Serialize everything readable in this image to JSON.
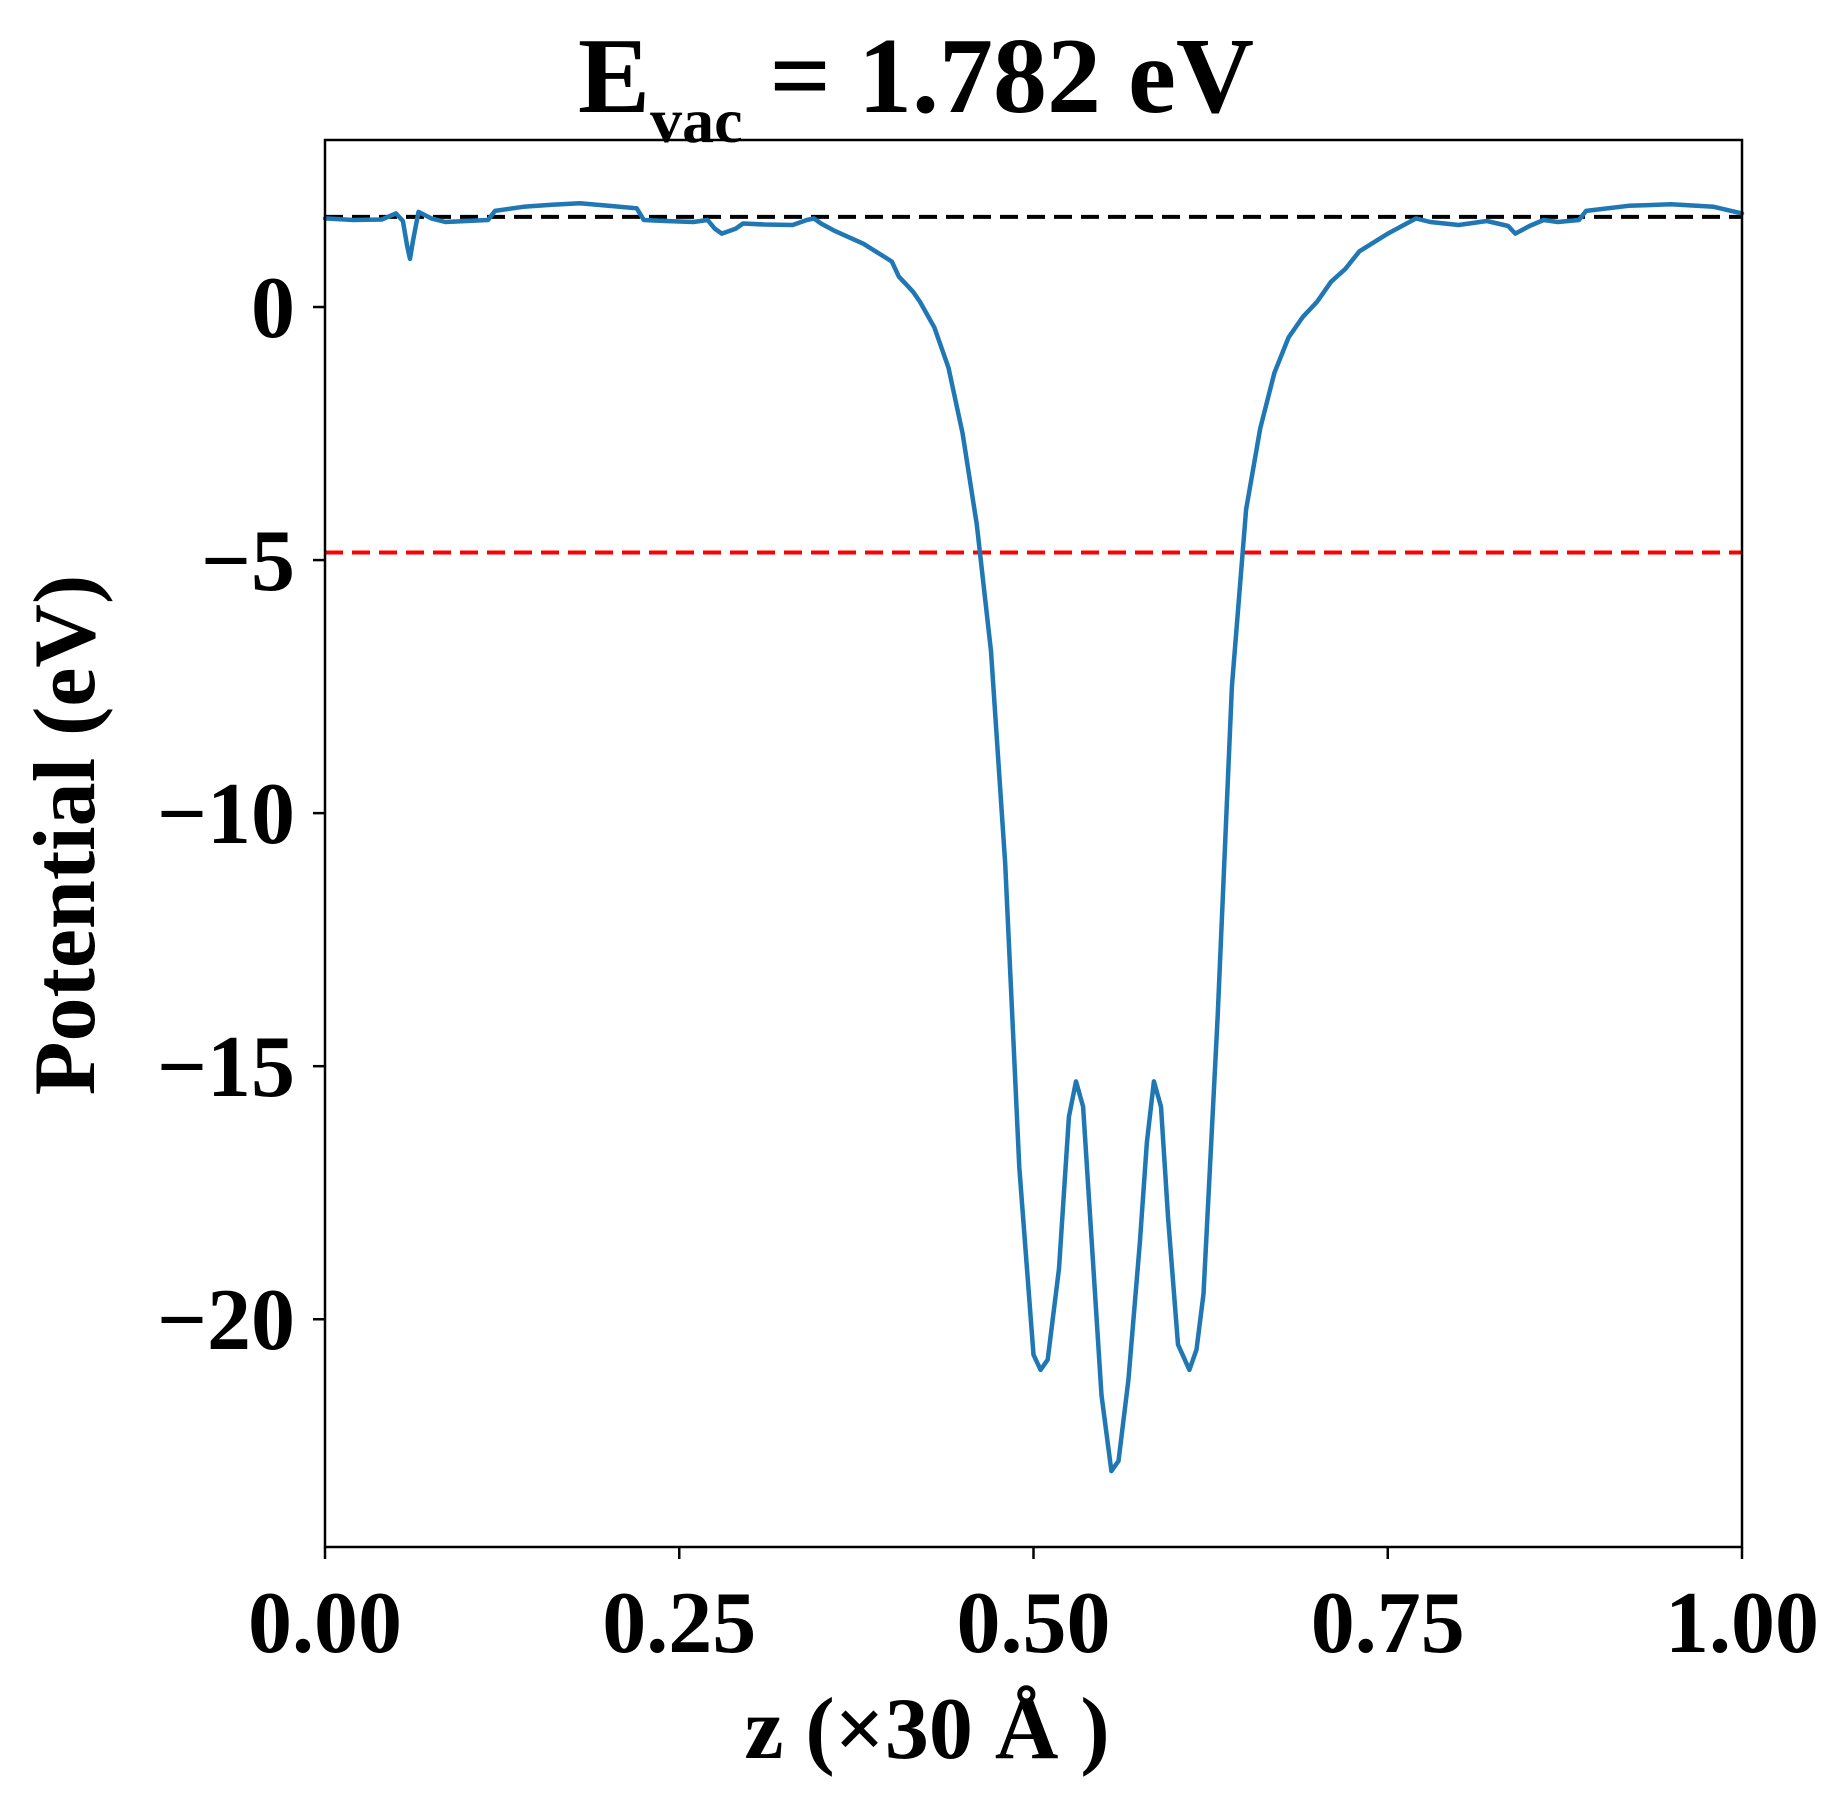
{
  "chart_data": {
    "type": "line",
    "title": {
      "prefix": "E",
      "subscript": "vac",
      "suffix": " = 1.782 eV"
    },
    "xlabel": "z (×30 Å )",
    "ylabel": "Potential (eV)",
    "xlim": [
      0.0,
      1.0
    ],
    "ylim": [
      -24.5,
      3.3
    ],
    "xticks": [
      0.0,
      0.25,
      0.5,
      0.75,
      1.0
    ],
    "xtick_labels": [
      "0.00",
      "0.25",
      "0.50",
      "0.75",
      "1.00"
    ],
    "yticks": [
      0,
      -5,
      -10,
      -15,
      -20
    ],
    "ytick_labels": [
      "0",
      "−5",
      "−10",
      "−15",
      "−20"
    ],
    "grid": false,
    "reference_lines": [
      {
        "y": 1.782,
        "color": "#000000",
        "style": "dashed"
      },
      {
        "y": -4.85,
        "color": "#ff0000",
        "style": "dashed"
      }
    ],
    "series": [
      {
        "color": "#1f77b4",
        "points": [
          [
            0.0,
            1.75
          ],
          [
            0.02,
            1.72
          ],
          [
            0.04,
            1.73
          ],
          [
            0.05,
            1.85
          ],
          [
            0.055,
            1.7
          ],
          [
            0.058,
            1.2
          ],
          [
            0.06,
            0.95
          ],
          [
            0.062,
            1.3
          ],
          [
            0.066,
            1.88
          ],
          [
            0.075,
            1.75
          ],
          [
            0.085,
            1.68
          ],
          [
            0.1,
            1.7
          ],
          [
            0.115,
            1.72
          ],
          [
            0.12,
            1.9
          ],
          [
            0.14,
            1.98
          ],
          [
            0.16,
            2.02
          ],
          [
            0.18,
            2.05
          ],
          [
            0.2,
            2.0
          ],
          [
            0.22,
            1.95
          ],
          [
            0.225,
            1.72
          ],
          [
            0.24,
            1.7
          ],
          [
            0.26,
            1.68
          ],
          [
            0.27,
            1.72
          ],
          [
            0.275,
            1.55
          ],
          [
            0.28,
            1.45
          ],
          [
            0.29,
            1.55
          ],
          [
            0.295,
            1.65
          ],
          [
            0.31,
            1.63
          ],
          [
            0.33,
            1.62
          ],
          [
            0.34,
            1.72
          ],
          [
            0.345,
            1.75
          ],
          [
            0.35,
            1.65
          ],
          [
            0.36,
            1.5
          ],
          [
            0.38,
            1.25
          ],
          [
            0.4,
            0.9
          ],
          [
            0.405,
            0.6
          ],
          [
            0.41,
            0.45
          ],
          [
            0.415,
            0.3
          ],
          [
            0.42,
            0.1
          ],
          [
            0.43,
            -0.4
          ],
          [
            0.44,
            -1.2
          ],
          [
            0.45,
            -2.5
          ],
          [
            0.46,
            -4.3
          ],
          [
            0.47,
            -6.8
          ],
          [
            0.48,
            -11.0
          ],
          [
            0.49,
            -17.0
          ],
          [
            0.5,
            -20.7
          ],
          [
            0.505,
            -21.0
          ],
          [
            0.51,
            -20.8
          ],
          [
            0.518,
            -19.0
          ],
          [
            0.525,
            -16.0
          ],
          [
            0.53,
            -15.3
          ],
          [
            0.535,
            -15.8
          ],
          [
            0.54,
            -18.0
          ],
          [
            0.548,
            -21.5
          ],
          [
            0.555,
            -23.0
          ],
          [
            0.56,
            -22.8
          ],
          [
            0.567,
            -21.2
          ],
          [
            0.575,
            -18.5
          ],
          [
            0.58,
            -16.5
          ],
          [
            0.585,
            -15.3
          ],
          [
            0.59,
            -15.8
          ],
          [
            0.595,
            -18.0
          ],
          [
            0.602,
            -20.5
          ],
          [
            0.61,
            -21.0
          ],
          [
            0.615,
            -20.6
          ],
          [
            0.62,
            -19.5
          ],
          [
            0.63,
            -14.0
          ],
          [
            0.64,
            -7.5
          ],
          [
            0.65,
            -4.0
          ],
          [
            0.66,
            -2.4
          ],
          [
            0.67,
            -1.3
          ],
          [
            0.68,
            -0.6
          ],
          [
            0.69,
            -0.2
          ],
          [
            0.7,
            0.1
          ],
          [
            0.71,
            0.5
          ],
          [
            0.72,
            0.75
          ],
          [
            0.73,
            1.1
          ],
          [
            0.75,
            1.45
          ],
          [
            0.77,
            1.75
          ],
          [
            0.78,
            1.68
          ],
          [
            0.8,
            1.62
          ],
          [
            0.82,
            1.7
          ],
          [
            0.835,
            1.6
          ],
          [
            0.84,
            1.45
          ],
          [
            0.85,
            1.6
          ],
          [
            0.86,
            1.72
          ],
          [
            0.87,
            1.68
          ],
          [
            0.885,
            1.72
          ],
          [
            0.89,
            1.9
          ],
          [
            0.92,
            2.0
          ],
          [
            0.95,
            2.03
          ],
          [
            0.98,
            1.98
          ],
          [
            1.0,
            1.85
          ]
        ]
      }
    ]
  }
}
